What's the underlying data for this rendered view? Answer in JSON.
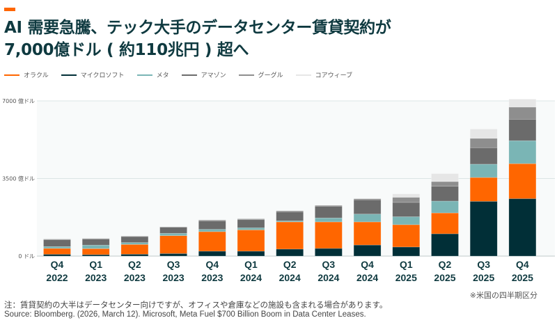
{
  "title_line1": "AI 需要急騰、テック大手のデータセンター賃貸契約が",
  "title_line2": "7,000億ドル ( 約110兆円 ) 超へ",
  "accent_color": "#ff6600",
  "chart_data": {
    "type": "bar",
    "stacked": true,
    "categories": [
      "Q4 2022",
      "Q1 2023",
      "Q2 2023",
      "Q3 2023",
      "Q4 2023",
      "Q1 2024",
      "Q2 2024",
      "Q3 2024",
      "Q4 2024",
      "Q1 2025",
      "Q2 2025",
      "Q3 2025",
      "Q4 2025"
    ],
    "category_lines": [
      [
        "Q4",
        "2022"
      ],
      [
        "Q1",
        "2023"
      ],
      [
        "Q2",
        "2023"
      ],
      [
        "Q3",
        "2023"
      ],
      [
        "Q4",
        "2023"
      ],
      [
        "Q1",
        "2024"
      ],
      [
        "Q2",
        "2024"
      ],
      [
        "Q3",
        "2024"
      ],
      [
        "Q4",
        "2024"
      ],
      [
        "Q1",
        "2025"
      ],
      [
        "Q2",
        "2025"
      ],
      [
        "Q3",
        "2025"
      ],
      [
        "Q4",
        "2025"
      ]
    ],
    "series": [
      {
        "name": "マイクロソフト",
        "color": "#012f37",
        "values": [
          80,
          65,
          85,
          115,
          220,
          220,
          315,
          345,
          500,
          410,
          1005,
          2470,
          2590
        ]
      },
      {
        "name": "オラクル",
        "color": "#ff6600",
        "values": [
          265,
          270,
          440,
          805,
          880,
          960,
          1225,
          1195,
          1040,
          1005,
          940,
          1075,
          1580
        ]
      },
      {
        "name": "メタ",
        "color": "#7ab5b5",
        "values": [
          85,
          160,
          85,
          105,
          105,
          95,
          50,
          180,
          355,
          360,
          535,
          600,
          1035
        ]
      },
      {
        "name": "アマゾン",
        "color": "#6b6b6b",
        "values": [
          305,
          270,
          270,
          275,
          385,
          365,
          410,
          530,
          645,
          645,
          670,
          745,
          965
        ]
      },
      {
        "name": "グーグル",
        "color": "#8e8e8e",
        "values": [
          30,
          30,
          20,
          20,
          35,
          40,
          40,
          35,
          45,
          230,
          210,
          420,
          550
        ]
      },
      {
        "name": "コアウィーブ",
        "color": "#e6e6e6",
        "values": [
          0,
          0,
          0,
          0,
          0,
          0,
          0,
          0,
          0,
          155,
          360,
          420,
          360
        ]
      }
    ],
    "legend_order": [
      "オラクル",
      "マイクロソフト",
      "メタ",
      "アマゾン",
      "グーグル",
      "コアウィーブ"
    ],
    "legend_placement": "top-left",
    "ylim": [
      0,
      7000
    ],
    "yticks": [
      0,
      3500,
      7000
    ],
    "ytick_labels": [
      "0 ドル",
      "3500 億ドル",
      "7000 億ドル"
    ],
    "grid": true
  },
  "region_note": "※米国の四半期区分",
  "note": "注：賃貸契約の大半はデータセンター向けですが、オフィスや倉庫などの施設も含まれる場合があります。",
  "source": "Source: Bloomberg. (2026, March 12). Microsoft, Meta Fuel $700 Billion Boom in Data Center Leases."
}
